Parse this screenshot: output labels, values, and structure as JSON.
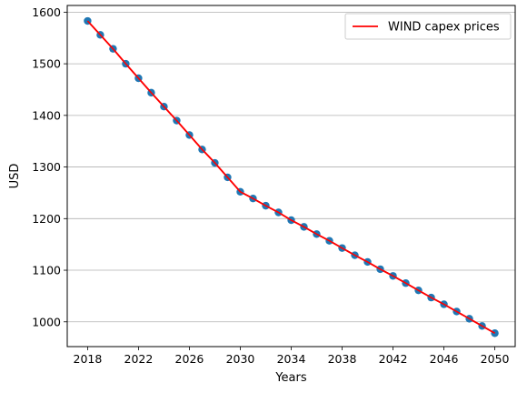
{
  "chart_data": {
    "type": "line",
    "xlabel": "Years",
    "ylabel": "USD",
    "xlim": [
      2016.4,
      2051.6
    ],
    "ylim": [
      952,
      1613
    ],
    "x_ticks": [
      2018,
      2022,
      2026,
      2030,
      2034,
      2038,
      2042,
      2046,
      2050
    ],
    "y_ticks": [
      1000,
      1100,
      1200,
      1300,
      1400,
      1500,
      1600
    ],
    "grid": {
      "y": true,
      "x": false
    },
    "legend_position": "top-right",
    "series": [
      {
        "name": "WIND capex prices",
        "style": "line+scatter",
        "line_color": "#ff0000",
        "marker_color": "#1f77b4",
        "x": [
          2018,
          2019,
          2020,
          2021,
          2022,
          2023,
          2024,
          2025,
          2026,
          2027,
          2028,
          2029,
          2030,
          2031,
          2032,
          2033,
          2034,
          2035,
          2036,
          2037,
          2038,
          2039,
          2040,
          2041,
          2042,
          2043,
          2044,
          2045,
          2046,
          2047,
          2048,
          2049,
          2050
        ],
        "y": [
          1583,
          1556,
          1529,
          1500,
          1472,
          1444,
          1417,
          1390,
          1362,
          1334,
          1308,
          1280,
          1252,
          1239,
          1225,
          1212,
          1197,
          1184,
          1170,
          1157,
          1143,
          1129,
          1116,
          1102,
          1089,
          1075,
          1061,
          1047,
          1034,
          1020,
          1006,
          992,
          978
        ]
      }
    ]
  }
}
